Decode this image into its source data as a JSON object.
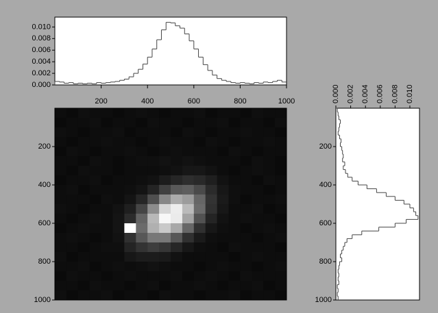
{
  "chart_data": [
    {
      "type": "histogram",
      "orientation": "vertical",
      "color": "#444444",
      "bins": [
        0,
        20,
        40,
        60,
        80,
        100,
        120,
        140,
        160,
        180,
        200,
        220,
        240,
        260,
        280,
        300,
        320,
        340,
        360,
        380,
        400,
        420,
        440,
        460,
        480,
        500,
        520,
        540,
        560,
        580,
        600,
        620,
        640,
        660,
        680,
        700,
        720,
        740,
        760,
        780,
        800,
        820,
        840,
        860,
        880,
        900,
        920,
        940,
        960,
        980,
        1000
      ],
      "values": [
        0.0006,
        0.0005,
        0.0003,
        0.0004,
        0.0002,
        0.0003,
        0.0002,
        0.0003,
        0.0002,
        0.0004,
        0.0003,
        0.0004,
        0.0005,
        0.0006,
        0.0008,
        0.001,
        0.0014,
        0.002,
        0.0027,
        0.0036,
        0.0048,
        0.0062,
        0.0078,
        0.0095,
        0.0108,
        0.0107,
        0.0102,
        0.0098,
        0.0088,
        0.0076,
        0.0062,
        0.0048,
        0.0035,
        0.0025,
        0.0017,
        0.0011,
        0.0008,
        0.0006,
        0.0004,
        0.0003,
        0.0004,
        0.0003,
        0.0002,
        0.0004,
        0.0003,
        0.0005,
        0.0004,
        0.0006,
        0.0008,
        0.0005
      ],
      "xlim": [
        0,
        1000
      ],
      "xticks": [
        200,
        400,
        600,
        800,
        1000
      ],
      "ylim": [
        0,
        0.0117
      ],
      "yticks": [
        {
          "value": 0,
          "label": "0.000"
        },
        {
          "value": 0.002,
          "label": "0.002"
        },
        {
          "value": 0.004,
          "label": "0.004"
        },
        {
          "value": 0.006,
          "label": "0.006"
        },
        {
          "value": 0.008,
          "label": "0.008"
        },
        {
          "value": 0.01,
          "label": "0.010"
        }
      ]
    },
    {
      "type": "heatmap",
      "xlim": [
        0,
        1000
      ],
      "ylim": [
        0,
        1000
      ],
      "yticks": [
        200,
        400,
        600,
        800,
        1000
      ],
      "zlim": [
        0,
        100
      ],
      "z": [
        [
          5,
          4,
          6,
          5,
          5,
          4,
          5,
          6,
          5,
          4,
          5,
          5,
          6,
          4,
          5,
          5,
          4,
          6,
          5,
          5
        ],
        [
          4,
          5,
          5,
          6,
          4,
          5,
          5,
          4,
          6,
          5,
          5,
          4,
          5,
          5,
          6,
          4,
          5,
          5,
          4,
          6
        ],
        [
          6,
          5,
          4,
          5,
          5,
          6,
          4,
          5,
          5,
          5,
          4,
          6,
          5,
          4,
          5,
          5,
          6,
          5,
          5,
          4
        ],
        [
          5,
          4,
          5,
          5,
          6,
          5,
          5,
          4,
          5,
          6,
          5,
          5,
          4,
          6,
          5,
          4,
          5,
          5,
          6,
          5
        ],
        [
          4,
          6,
          5,
          4,
          5,
          5,
          6,
          5,
          4,
          5,
          6,
          5,
          5,
          5,
          4,
          6,
          5,
          4,
          5,
          5
        ],
        [
          5,
          5,
          4,
          6,
          5,
          4,
          5,
          6,
          6,
          7,
          6,
          7,
          6,
          5,
          5,
          5,
          4,
          6,
          5,
          4
        ],
        [
          5,
          4,
          6,
          5,
          5,
          4,
          5,
          5,
          5,
          6,
          7,
          9,
          9,
          7,
          5,
          4,
          5,
          6,
          5,
          4
        ],
        [
          4,
          5,
          5,
          6,
          4,
          5,
          5,
          6,
          7,
          11,
          15,
          18,
          16,
          12,
          7,
          5,
          5,
          4,
          6,
          5
        ],
        [
          5,
          6,
          4,
          5,
          5,
          5,
          6,
          8,
          14,
          25,
          35,
          37,
          29,
          17,
          9,
          6,
          5,
          5,
          4,
          5
        ],
        [
          5,
          5,
          5,
          4,
          6,
          5,
          8,
          15,
          31,
          53,
          67,
          61,
          40,
          20,
          10,
          6,
          4,
          5,
          5,
          6
        ],
        [
          6,
          5,
          4,
          5,
          5,
          7,
          12,
          27,
          55,
          84,
          93,
          73,
          42,
          19,
          9,
          5,
          5,
          6,
          4,
          5
        ],
        [
          5,
          4,
          5,
          6,
          5,
          8,
          17,
          39,
          72,
          97,
          92,
          64,
          32,
          14,
          7,
          5,
          6,
          5,
          5,
          4
        ],
        [
          4,
          5,
          6,
          5,
          5,
          8,
          100,
          42,
          69,
          79,
          66,
          40,
          19,
          9,
          6,
          5,
          4,
          5,
          6,
          5
        ],
        [
          5,
          6,
          5,
          4,
          5,
          7,
          19,
          34,
          47,
          47,
          34,
          19,
          10,
          6,
          5,
          5,
          5,
          4,
          5,
          6
        ],
        [
          5,
          5,
          4,
          5,
          6,
          6,
          14,
          20,
          24,
          21,
          15,
          9,
          6,
          5,
          4,
          6,
          5,
          5,
          5,
          4
        ],
        [
          6,
          4,
          5,
          5,
          5,
          5,
          9,
          11,
          11,
          10,
          7,
          5,
          5,
          5,
          5,
          4,
          5,
          6,
          5,
          5
        ],
        [
          5,
          5,
          6,
          4,
          5,
          6,
          5,
          6,
          7,
          6,
          5,
          5,
          4,
          5,
          6,
          5,
          5,
          4,
          5,
          6
        ],
        [
          4,
          6,
          5,
          5,
          4,
          5,
          6,
          5,
          5,
          5,
          6,
          4,
          5,
          6,
          5,
          4,
          6,
          5,
          5,
          5
        ],
        [
          5,
          5,
          4,
          6,
          5,
          5,
          4,
          5,
          6,
          4,
          5,
          5,
          6,
          5,
          4,
          5,
          5,
          6,
          4,
          5
        ],
        [
          6,
          4,
          5,
          5,
          6,
          4,
          5,
          5,
          4,
          6,
          5,
          5,
          4,
          5,
          5,
          6,
          4,
          5,
          5,
          4
        ]
      ]
    },
    {
      "type": "histogram",
      "orientation": "horizontal",
      "color": "#444444",
      "bins": [
        0,
        20,
        40,
        60,
        80,
        100,
        120,
        140,
        160,
        180,
        200,
        220,
        240,
        260,
        280,
        300,
        320,
        340,
        360,
        380,
        400,
        420,
        440,
        460,
        480,
        500,
        520,
        540,
        560,
        580,
        600,
        620,
        640,
        660,
        680,
        700,
        720,
        740,
        760,
        780,
        800,
        820,
        840,
        860,
        880,
        900,
        920,
        940,
        960,
        980,
        1000
      ],
      "values": [
        0.0002,
        0.0003,
        0.0004,
        0.0006,
        0.0005,
        0.0004,
        0.0003,
        0.0005,
        0.0007,
        0.0006,
        0.0008,
        0.0009,
        0.001,
        0.0009,
        0.0012,
        0.001,
        0.0013,
        0.0016,
        0.0022,
        0.003,
        0.0042,
        0.0055,
        0.0068,
        0.008,
        0.0092,
        0.01,
        0.0105,
        0.0108,
        0.0111,
        0.0095,
        0.008,
        0.0058,
        0.0035,
        0.0022,
        0.0015,
        0.0012,
        0.001,
        0.0008,
        0.0006,
        0.0008,
        0.0005,
        0.0004,
        0.0003,
        0.0004,
        0.0003,
        0.0004,
        0.0002,
        0.0003,
        0.0002,
        0.0003
      ],
      "xlim": [
        0,
        0.0113
      ],
      "xticks": [
        {
          "value": 0,
          "label": "0.000"
        },
        {
          "value": 0.002,
          "label": "0.002"
        },
        {
          "value": 0.004,
          "label": "0.004"
        },
        {
          "value": 0.006,
          "label": "0.006"
        },
        {
          "value": 0.008,
          "label": "0.008"
        },
        {
          "value": 0.01,
          "label": "0.010"
        }
      ],
      "ylim": [
        0,
        1000
      ],
      "yticks": [
        200,
        400,
        600,
        800,
        1000
      ]
    }
  ]
}
